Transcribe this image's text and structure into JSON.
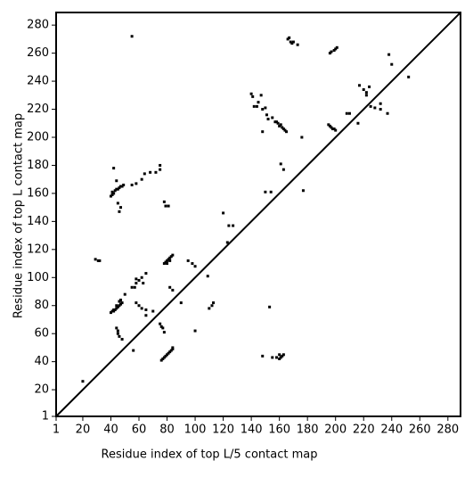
{
  "chart_data": {
    "type": "scatter",
    "x_label": "Residue index of top L/5 contact map",
    "y_label": "Residue index of top L contact map",
    "xlim": [
      1,
      289
    ],
    "ylim": [
      1,
      289
    ],
    "xticks": [
      1,
      20,
      40,
      60,
      80,
      100,
      120,
      140,
      160,
      180,
      200,
      220,
      240,
      260,
      280
    ],
    "yticks": [
      1,
      20,
      40,
      60,
      80,
      100,
      120,
      140,
      160,
      180,
      200,
      220,
      240,
      260,
      280
    ],
    "diagonal": true,
    "series": [
      {
        "color": "#000000",
        "x": [
          76,
          77,
          78,
          79,
          80,
          81,
          82,
          83,
          84,
          84,
          56,
          75,
          77,
          78,
          76,
          100,
          82,
          84,
          90,
          110,
          112,
          113,
          109,
          123,
          153,
          148,
          155,
          158,
          160,
          161,
          162,
          163,
          160,
          177,
          176,
          216,
          225,
          228,
          232,
          232,
          237,
          252,
          240,
          238,
          20,
          29,
          31,
          32,
          40,
          41,
          42,
          43,
          44,
          45,
          46,
          47,
          48,
          46,
          47,
          44,
          42,
          44,
          45,
          45,
          46,
          48,
          50,
          40,
          41,
          42,
          43,
          44,
          45,
          46,
          47,
          48,
          49,
          41,
          44,
          42,
          46,
          47,
          45,
          55,
          58,
          62,
          64,
          68,
          72,
          75,
          75,
          55,
          55,
          57,
          58,
          58,
          60,
          62,
          65,
          63,
          60,
          62,
          65,
          70,
          65,
          58,
          78,
          79,
          80,
          81,
          82,
          83,
          84,
          80,
          82,
          78,
          79,
          81,
          95,
          98,
          100,
          120,
          124,
          127,
          140,
          141,
          142,
          145,
          147,
          144,
          148,
          150,
          151,
          152,
          155,
          157,
          158,
          159,
          160,
          161,
          162,
          163,
          164,
          165,
          148,
          150,
          154,
          161,
          163,
          167,
          168,
          169,
          170,
          166,
          173,
          195,
          196,
          197,
          198,
          199,
          200,
          196,
          197,
          199,
          200,
          201,
          208,
          210,
          217,
          220,
          222,
          224,
          222
        ],
        "y": [
          41,
          42,
          43,
          44,
          45,
          46,
          47,
          48,
          49,
          50,
          48,
          67,
          64,
          61,
          65,
          62,
          93,
          91,
          82,
          78,
          80,
          82,
          101,
          125,
          79,
          44,
          43,
          43,
          42,
          43,
          44,
          45,
          45,
          162,
          200,
          210,
          222,
          221,
          220,
          224,
          217,
          243,
          252,
          259,
          26,
          113,
          112,
          112,
          75,
          76,
          77,
          77,
          78,
          79,
          80,
          81,
          82,
          83,
          84,
          80,
          76,
          64,
          62,
          60,
          58,
          56,
          88,
          158,
          159,
          160,
          162,
          163,
          163,
          164,
          165,
          165,
          166,
          161,
          169,
          178,
          147,
          150,
          153,
          166,
          167,
          170,
          174,
          175,
          175,
          177,
          180,
          272,
          93,
          93,
          96,
          99,
          98,
          100,
          103,
          96,
          80,
          78,
          77,
          76,
          73,
          82,
          110,
          111,
          112,
          113,
          114,
          115,
          116,
          110,
          112,
          154,
          151,
          151,
          112,
          110,
          108,
          146,
          137,
          137,
          231,
          229,
          222,
          225,
          230,
          222,
          220,
          221,
          216,
          213,
          214,
          211,
          211,
          210,
          208,
          209,
          207,
          206,
          205,
          204,
          204,
          161,
          161,
          181,
          177,
          271,
          268,
          267,
          268,
          270,
          266,
          209,
          208,
          207,
          206,
          206,
          205,
          260,
          261,
          262,
          263,
          264,
          217,
          217,
          237,
          234,
          232,
          236,
          230
        ]
      }
    ]
  }
}
